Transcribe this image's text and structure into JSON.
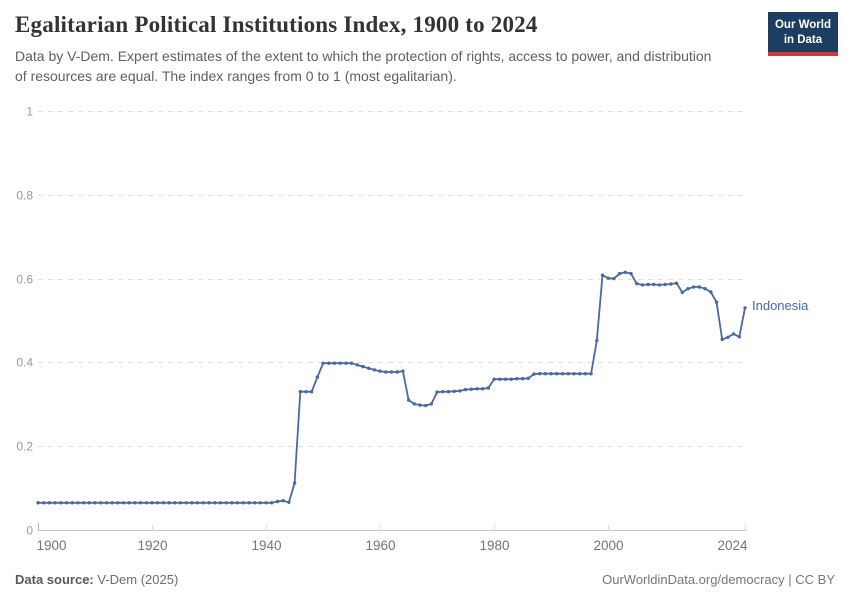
{
  "header": {
    "title": "Egalitarian Political Institutions Index, 1900 to 2024",
    "subtitle": "Data by V-Dem. Expert estimates of the extent to which the protection of rights, access to power, and distribution of resources are equal. The index ranges from 0 to 1 (most egalitarian).",
    "logo": {
      "line1": "Our World",
      "line2": "in Data"
    }
  },
  "chart_data": {
    "type": "line",
    "title": "Egalitarian Political Institutions Index, 1900 to 2024",
    "xlabel": "",
    "ylabel": "",
    "xlim": [
      1900,
      2024
    ],
    "ylim": [
      0,
      1
    ],
    "grid": true,
    "legend_position": "end-of-line-label",
    "y_ticks": [
      "0",
      "0.2",
      "0.4",
      "0.6",
      "0.8",
      "1"
    ],
    "x_ticks": [
      1900,
      1920,
      1940,
      1960,
      1980,
      2000,
      2024
    ],
    "series": [
      {
        "name": "Indonesia",
        "color": "#4a69a2",
        "years": [
          1900,
          1901,
          1902,
          1903,
          1904,
          1905,
          1906,
          1907,
          1908,
          1909,
          1910,
          1911,
          1912,
          1913,
          1914,
          1915,
          1916,
          1917,
          1918,
          1919,
          1920,
          1921,
          1922,
          1923,
          1924,
          1925,
          1926,
          1927,
          1928,
          1929,
          1930,
          1931,
          1932,
          1933,
          1934,
          1935,
          1936,
          1937,
          1938,
          1939,
          1940,
          1941,
          1942,
          1943,
          1944,
          1945,
          1946,
          1947,
          1948,
          1949,
          1950,
          1951,
          1952,
          1953,
          1954,
          1955,
          1956,
          1957,
          1958,
          1959,
          1960,
          1961,
          1962,
          1963,
          1964,
          1965,
          1966,
          1967,
          1968,
          1969,
          1970,
          1971,
          1972,
          1973,
          1974,
          1975,
          1976,
          1977,
          1978,
          1979,
          1980,
          1981,
          1982,
          1983,
          1984,
          1985,
          1986,
          1987,
          1988,
          1989,
          1990,
          1991,
          1992,
          1993,
          1994,
          1995,
          1996,
          1997,
          1998,
          1999,
          2000,
          2001,
          2002,
          2003,
          2004,
          2005,
          2006,
          2007,
          2008,
          2009,
          2010,
          2011,
          2012,
          2013,
          2014,
          2015,
          2016,
          2017,
          2018,
          2019,
          2020,
          2021,
          2022,
          2023,
          2024
        ],
        "values": [
          0.065,
          0.065,
          0.065,
          0.065,
          0.065,
          0.065,
          0.065,
          0.065,
          0.065,
          0.065,
          0.065,
          0.065,
          0.065,
          0.065,
          0.065,
          0.065,
          0.065,
          0.065,
          0.065,
          0.065,
          0.065,
          0.065,
          0.065,
          0.065,
          0.065,
          0.065,
          0.065,
          0.065,
          0.065,
          0.065,
          0.065,
          0.065,
          0.065,
          0.065,
          0.065,
          0.065,
          0.065,
          0.065,
          0.065,
          0.065,
          0.065,
          0.065,
          0.068,
          0.07,
          0.066,
          0.112,
          0.33,
          0.33,
          0.33,
          0.365,
          0.398,
          0.398,
          0.398,
          0.398,
          0.398,
          0.398,
          0.394,
          0.39,
          0.386,
          0.382,
          0.379,
          0.377,
          0.377,
          0.377,
          0.379,
          0.31,
          0.301,
          0.298,
          0.297,
          0.301,
          0.329,
          0.33,
          0.33,
          0.331,
          0.332,
          0.335,
          0.336,
          0.337,
          0.337,
          0.339,
          0.36,
          0.36,
          0.36,
          0.36,
          0.361,
          0.361,
          0.362,
          0.372,
          0.373,
          0.373,
          0.373,
          0.373,
          0.373,
          0.373,
          0.373,
          0.373,
          0.373,
          0.373,
          0.452,
          0.608,
          0.601,
          0.6,
          0.612,
          0.615,
          0.612,
          0.588,
          0.585,
          0.586,
          0.586,
          0.585,
          0.586,
          0.587,
          0.589,
          0.567,
          0.576,
          0.58,
          0.58,
          0.576,
          0.568,
          0.544,
          0.455,
          0.46,
          0.468,
          0.461,
          0.53
        ]
      }
    ]
  },
  "footer": {
    "data_source_label": "Data source:",
    "data_source_value": " V-Dem (2025)",
    "credit": "OurWorldinData.org/democracy | CC BY"
  },
  "colors": {
    "line": "#4a69a2",
    "grid": "#e0e0e0",
    "axis": "#c6c6c6",
    "tick_minor": "#dcdcdc",
    "tick_edge": "#b9b9b9",
    "logo_bg": "#1d3d63",
    "logo_accent": "#cf3a36",
    "title_text": "#333333",
    "subtitle_text": "#606060"
  }
}
